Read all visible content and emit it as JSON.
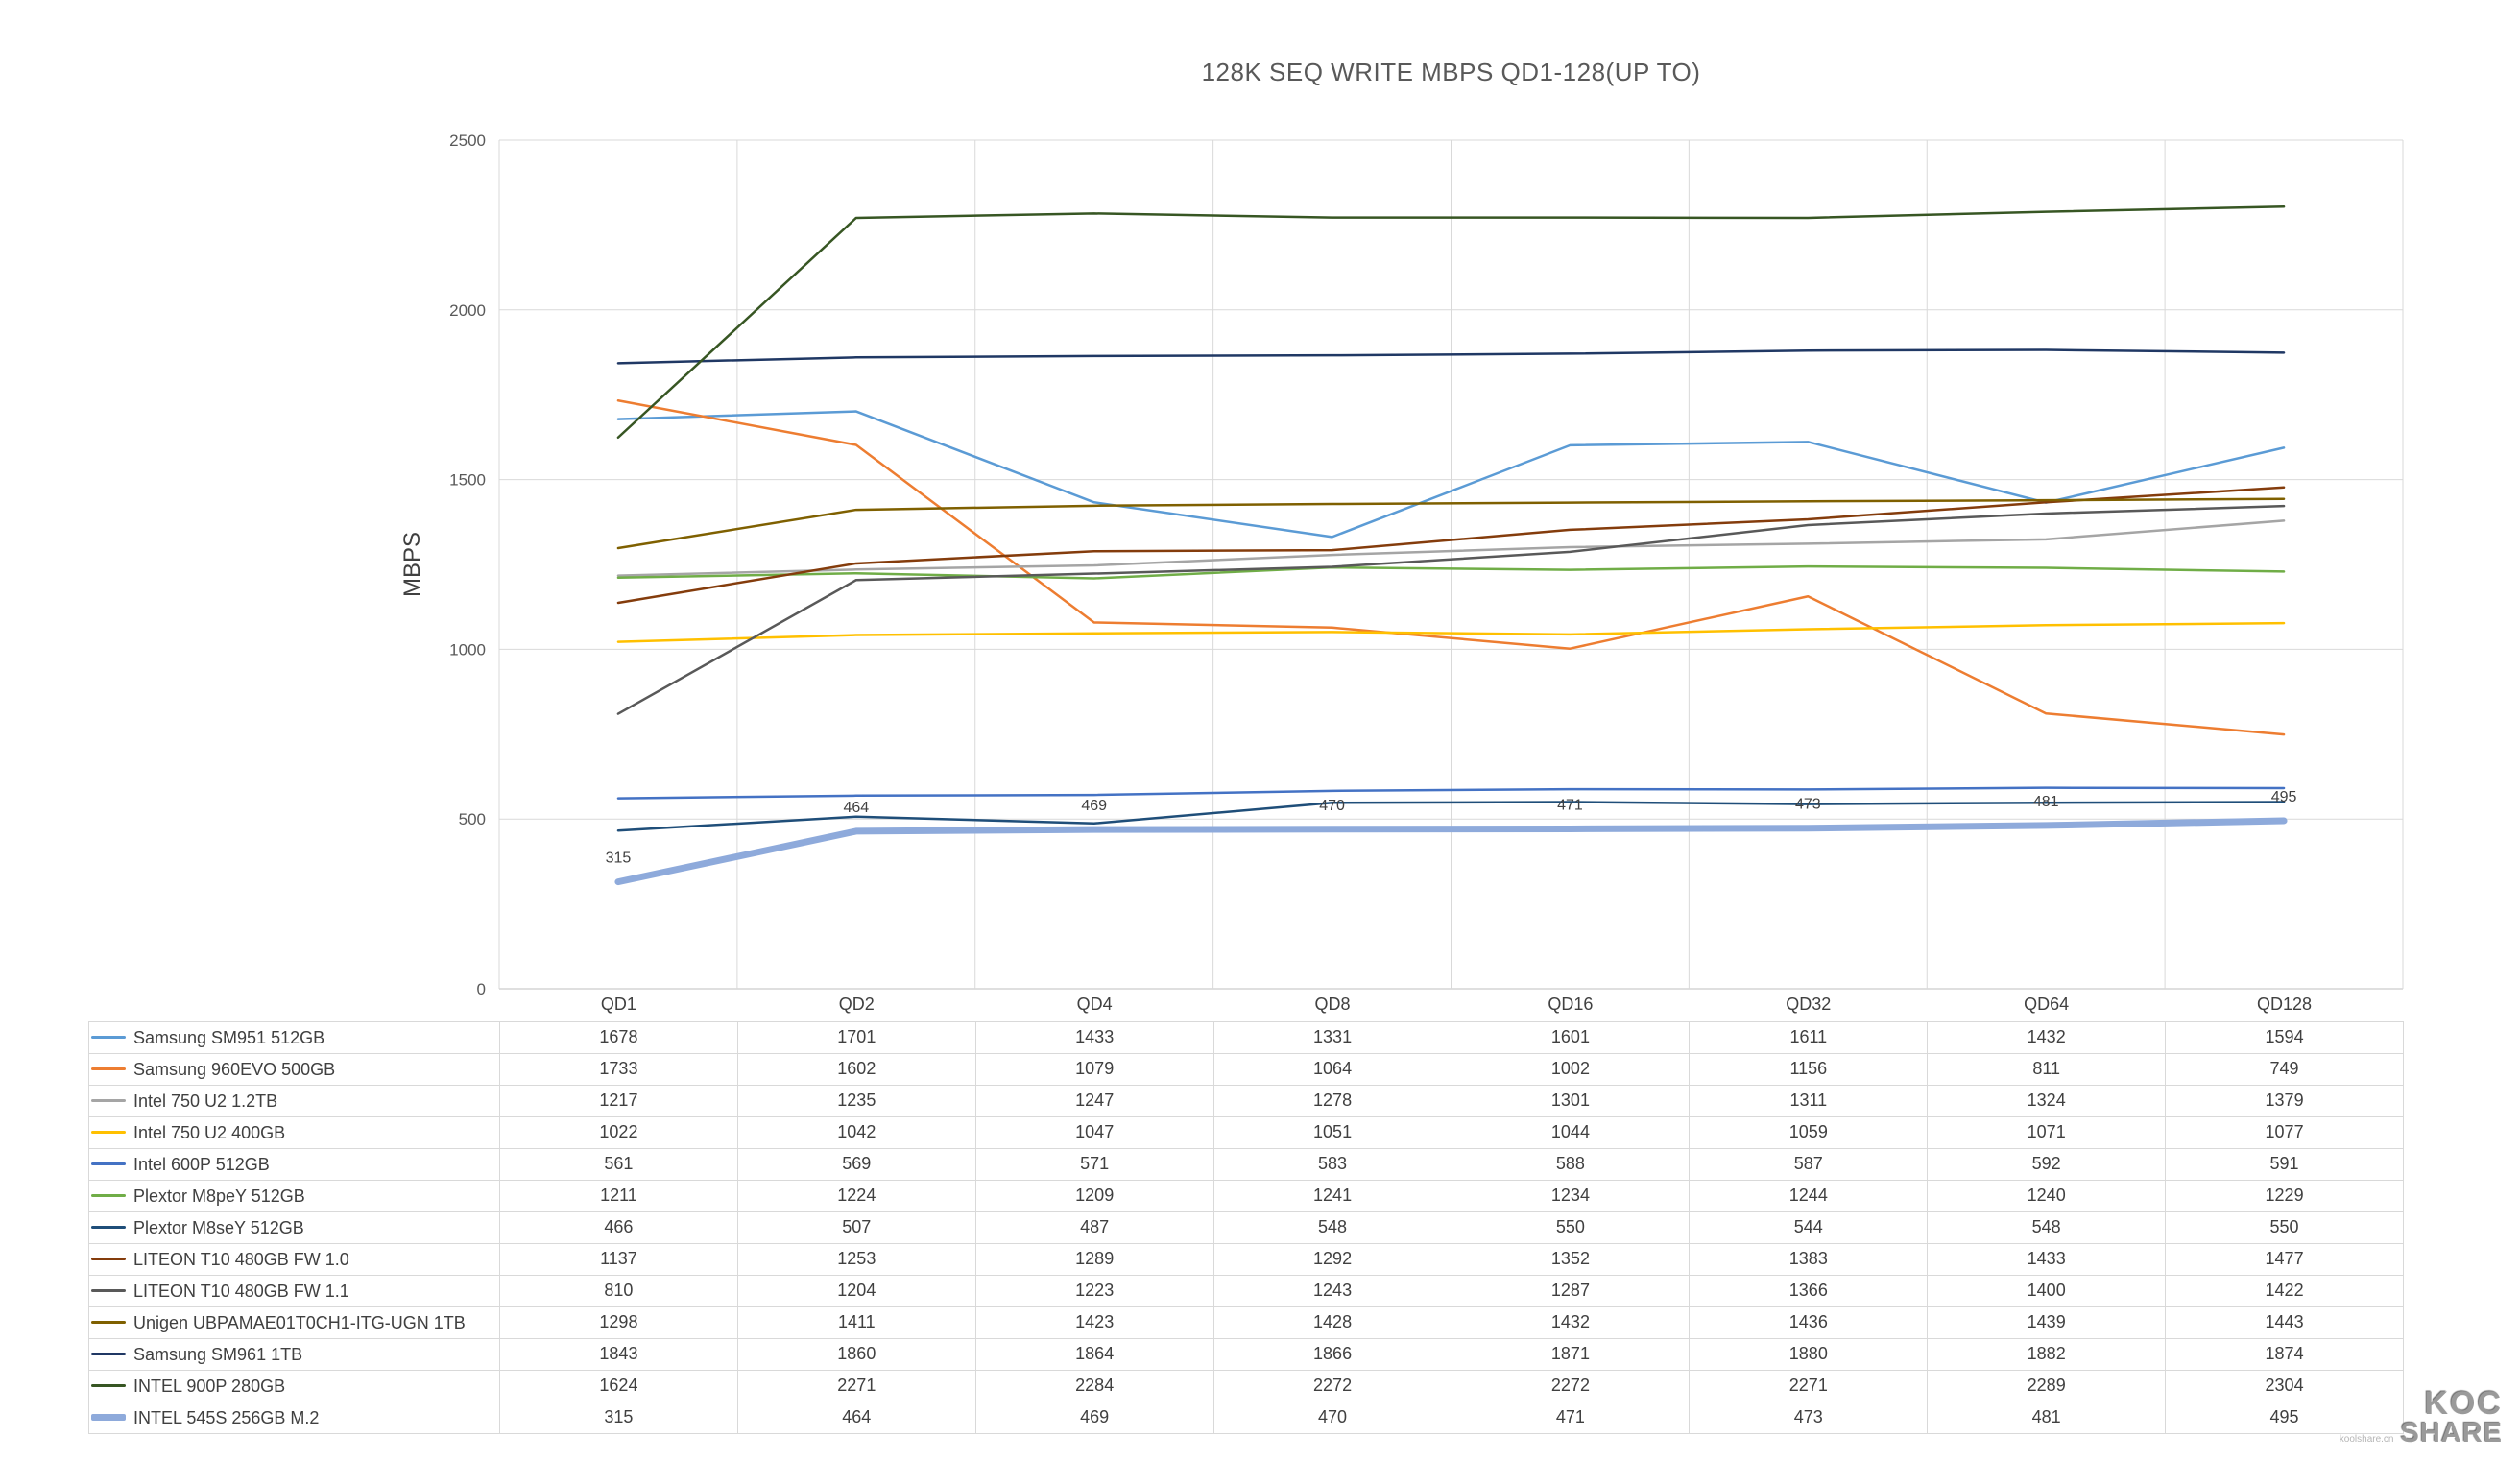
{
  "chart_data": {
    "type": "line",
    "title": "128K SEQ WRITE MBPS QD1-128(UP TO)",
    "ylabel": "MBPS",
    "xlabel": "",
    "categories": [
      "QD1",
      "QD2",
      "QD4",
      "QD8",
      "QD16",
      "QD32",
      "QD64",
      "QD128"
    ],
    "ylim": [
      0,
      2500
    ],
    "ytick_interval": 500,
    "yticks": [
      0,
      500,
      1000,
      1500,
      2000,
      2500
    ],
    "grid": true,
    "legend_position": "table-below-left",
    "colors": {
      "gridline": "#D9D9D9",
      "axis_line": "#BFBFBF",
      "text": "#404040",
      "title_text": "#595959"
    },
    "series": [
      {
        "name": "Samsung SM951 512GB",
        "color": "#5B9BD5",
        "line_width": 2.5,
        "values": [
          1678,
          1701,
          1433,
          1331,
          1601,
          1611,
          1432,
          1594
        ]
      },
      {
        "name": "Samsung 960EVO 500GB",
        "color": "#ED7D31",
        "line_width": 2.5,
        "values": [
          1733,
          1602,
          1079,
          1064,
          1002,
          1156,
          811,
          749
        ]
      },
      {
        "name": "Intel 750 U2 1.2TB",
        "color": "#A5A5A5",
        "line_width": 2.5,
        "values": [
          1217,
          1235,
          1247,
          1278,
          1301,
          1311,
          1324,
          1379
        ]
      },
      {
        "name": "Intel 750 U2 400GB",
        "color": "#FFC000",
        "line_width": 2.5,
        "values": [
          1022,
          1042,
          1047,
          1051,
          1044,
          1059,
          1071,
          1077
        ]
      },
      {
        "name": "Intel 600P 512GB",
        "color": "#4472C4",
        "line_width": 2.5,
        "values": [
          561,
          569,
          571,
          583,
          588,
          587,
          592,
          591
        ]
      },
      {
        "name": "Plextor M8peY 512GB",
        "color": "#70AD47",
        "line_width": 2.5,
        "values": [
          1211,
          1224,
          1209,
          1241,
          1234,
          1244,
          1240,
          1229
        ]
      },
      {
        "name": "Plextor M8seY 512GB",
        "color": "#1F4E79",
        "line_width": 2.5,
        "values": [
          466,
          507,
          487,
          548,
          550,
          544,
          548,
          550
        ]
      },
      {
        "name": "LITEON T10 480GB FW 1.0",
        "color": "#843C0C",
        "line_width": 2.5,
        "values": [
          1137,
          1253,
          1289,
          1292,
          1352,
          1383,
          1433,
          1477
        ]
      },
      {
        "name": "LITEON T10 480GB FW 1.1",
        "color": "#595959",
        "line_width": 2.5,
        "values": [
          810,
          1204,
          1223,
          1243,
          1287,
          1366,
          1400,
          1422
        ]
      },
      {
        "name": "Unigen UBPAMAE01T0CH1-ITG-UGN 1TB",
        "color": "#7F6000",
        "line_width": 2.5,
        "values": [
          1298,
          1411,
          1423,
          1428,
          1432,
          1436,
          1439,
          1443
        ]
      },
      {
        "name": "Samsung SM961 1TB",
        "color": "#203864",
        "line_width": 2.5,
        "values": [
          1843,
          1860,
          1864,
          1866,
          1871,
          1880,
          1882,
          1874
        ]
      },
      {
        "name": "INTEL 900P 280GB",
        "color": "#375623",
        "line_width": 2.5,
        "values": [
          1624,
          2271,
          2284,
          2272,
          2272,
          2271,
          2289,
          2304
        ]
      },
      {
        "name": "INTEL 545S 256GB M.2",
        "color": "#8EAADB",
        "line_width": 7,
        "values": [
          315,
          464,
          469,
          470,
          471,
          473,
          481,
          495
        ],
        "data_labels": true
      }
    ]
  },
  "watermark": {
    "line1": "KOC",
    "line2": "SHARE",
    "small": "koolshare.cn"
  }
}
